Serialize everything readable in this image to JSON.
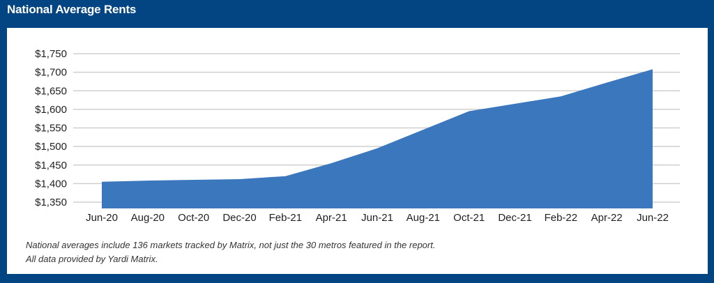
{
  "header": {
    "title": "National Average Rents"
  },
  "chart_data": {
    "type": "area",
    "title": "National Average Rents",
    "xlabel": "",
    "ylabel": "",
    "categories": [
      "Jun-20",
      "Aug-20",
      "Oct-20",
      "Dec-20",
      "Feb-21",
      "Apr-21",
      "Jun-21",
      "Aug-21",
      "Oct-21",
      "Dec-21",
      "Feb-22",
      "Apr-22",
      "Jun-22"
    ],
    "values": [
      1405,
      1408,
      1410,
      1412,
      1420,
      1455,
      1495,
      1545,
      1595,
      1615,
      1635,
      1672,
      1708
    ],
    "ylim": [
      1330,
      1750
    ],
    "yticks": [
      1350,
      1400,
      1450,
      1500,
      1550,
      1600,
      1650,
      1700,
      1750
    ],
    "ytick_labels": [
      "$1,350",
      "$1,400",
      "$1,450",
      "$1,500",
      "$1,550",
      "$1,600",
      "$1,650",
      "$1,700",
      "$1,750"
    ],
    "grid": true,
    "fill_color": "#3a77bd"
  },
  "footnotes": {
    "line1": "National averages include 136 markets tracked by Matrix, not just the 30 metros featured in the report.",
    "line2": "All data provided by Yardi Matrix."
  }
}
